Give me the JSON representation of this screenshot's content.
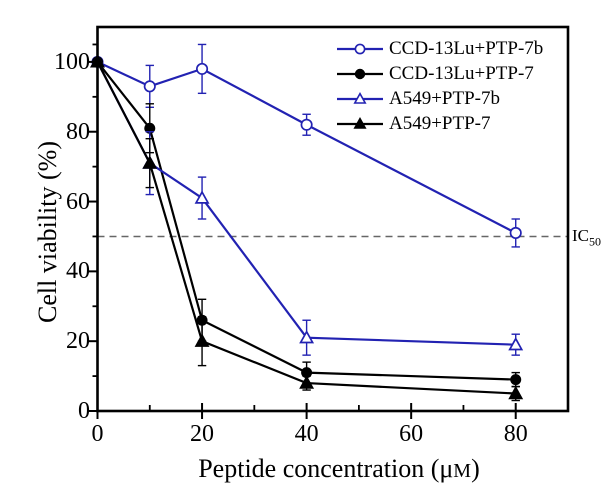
{
  "figure": {
    "ylabel": "Cell viability (%)",
    "xlabel_prefix": "Peptide concentration (μ",
    "xlabel_unit": "M",
    "xlabel_suffix": ")",
    "ic50_main": "IC",
    "ic50_sub": "50"
  },
  "chart_data": {
    "type": "line",
    "title": "",
    "xlabel": "Peptide concentration (μM)",
    "ylabel": "Cell viability (%)",
    "x": [
      0,
      10,
      20,
      40,
      80
    ],
    "series": [
      {
        "name": "CCD-13Lu+PTP-7b",
        "color": "#2222b2",
        "marker": "circle-open",
        "values": [
          100,
          93,
          98,
          82,
          51
        ],
        "errors": [
          0,
          6,
          7,
          3,
          4
        ]
      },
      {
        "name": "CCD-13Lu+PTP-7",
        "color": "#000000",
        "marker": "circle-filled",
        "values": [
          100,
          81,
          26,
          11,
          9
        ],
        "errors": [
          0,
          7,
          6,
          3,
          2
        ]
      },
      {
        "name": "A549+PTP-7b",
        "color": "#2222b2",
        "marker": "triangle-open",
        "values": [
          100,
          71,
          61,
          21,
          19
        ],
        "errors": [
          0,
          9,
          6,
          5,
          3
        ]
      },
      {
        "name": "A549+PTP-7",
        "color": "#000000",
        "marker": "triangle-filled",
        "values": [
          100,
          71,
          20,
          8,
          5
        ],
        "errors": [
          0,
          7,
          7,
          2,
          2
        ]
      }
    ],
    "xlim": [
      0,
      90
    ],
    "ylim": [
      0,
      110
    ],
    "x_major_ticks": [
      0,
      20,
      40,
      60,
      80
    ],
    "x_minor_ticks": [
      10,
      30,
      50,
      70
    ],
    "y_major_ticks": [
      0,
      20,
      40,
      60,
      80,
      100
    ],
    "y_minor_ticks": [
      10,
      30,
      50,
      70,
      90,
      105
    ],
    "reference_line": {
      "value": 50,
      "style": "dashed",
      "color": "#666666",
      "label": "IC50"
    },
    "legend_position": "top-right",
    "grid": false
  }
}
